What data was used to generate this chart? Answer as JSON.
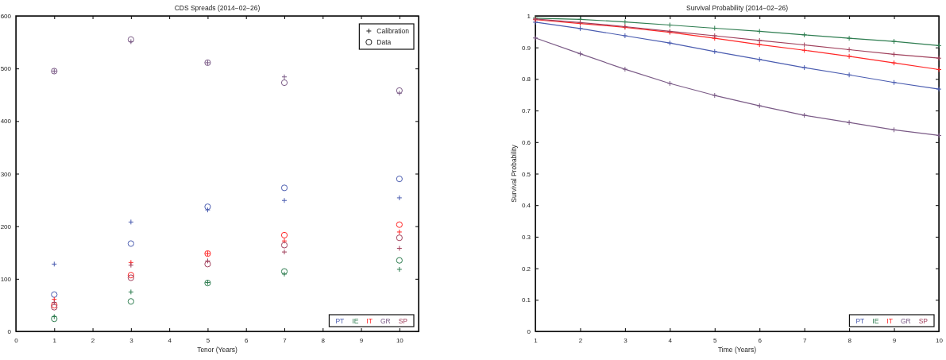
{
  "chart_data": [
    {
      "type": "scatter",
      "title": "CDS Spreads (2014−02−26)",
      "xlabel": "Tenor (Years)",
      "xlim": [
        0,
        10.5
      ],
      "xticks": [
        0,
        1,
        2,
        3,
        4,
        5,
        6,
        7,
        8,
        9,
        10
      ],
      "ylim": [
        0,
        600
      ],
      "yticks": [
        0,
        100,
        200,
        300,
        400,
        500,
        600
      ],
      "x": [
        1,
        3,
        5,
        7,
        10
      ],
      "legend": "bottom right",
      "annotations": [
        "Calibration",
        "Data"
      ],
      "series": [
        {
          "name": "PT",
          "color": "#4a5cb0",
          "marker": "cross",
          "values": [
            128,
            208,
            231,
            249,
            254
          ]
        },
        {
          "color": "#4a5cb0",
          "marker": "circle",
          "values": [
            70,
            167,
            237,
            273,
            290
          ]
        },
        {
          "name": "IE",
          "color": "#2e7d50",
          "marker": "cross",
          "values": [
            28,
            75,
            93,
            109,
            118
          ]
        },
        {
          "color": "#2e7d50",
          "marker": "circle",
          "values": [
            24,
            57,
            92,
            114,
            135
          ]
        },
        {
          "name": "IT",
          "color": "#ff2626",
          "marker": "cross",
          "values": [
            61,
            131,
            148,
            172,
            189
          ]
        },
        {
          "color": "#ff2626",
          "marker": "circle",
          "values": [
            50,
            107,
            148,
            183,
            203
          ]
        },
        {
          "name": "GR",
          "color": "#7a5a86",
          "marker": "cross",
          "values": [
            495,
            551,
            511,
            484,
            453
          ]
        },
        {
          "color": "#7a5a86",
          "values": [
            495,
            555,
            511,
            473,
            458
          ]
        },
        {
          "name": "SP",
          "color": "#a0405c",
          "marker": "cross",
          "values": [
            55,
            126,
            134,
            151,
            158
          ]
        },
        {
          "color": "#a0405c",
          "marker": "circle",
          "values": [
            46,
            102,
            128,
            164,
            178
          ]
        }
      ]
    },
    {
      "type": "line",
      "title": "Survival Probability (2014−02−26)",
      "xlabel": "Time (Years)",
      "ylabel": "Survival Probability",
      "xlim": [
        1,
        10
      ],
      "xticks": [
        1,
        2,
        3,
        4,
        5,
        6,
        7,
        8,
        9,
        10
      ],
      "ylim": [
        0,
        1
      ],
      "yticks": [
        0,
        0.1,
        0.2,
        0.3,
        0.4,
        0.5,
        0.6,
        0.7,
        0.8,
        0.9,
        1
      ],
      "x": [
        1,
        2,
        3,
        4,
        5,
        6,
        7,
        8,
        9,
        10
      ],
      "legend": "bottom right",
      "marker": "cross",
      "series": [
        {
          "name": "PT",
          "color": "#4a5cb0",
          "values": [
            0.98,
            0.96,
            0.937,
            0.914,
            0.887,
            0.862,
            0.836,
            0.813,
            0.789,
            0.768
          ]
        },
        {
          "name": "IE",
          "color": "#2e7d50",
          "values": [
            0.993,
            0.989,
            0.981,
            0.971,
            0.961,
            0.951,
            0.94,
            0.929,
            0.919,
            0.906
          ]
        },
        {
          "name": "IT",
          "color": "#ff2626",
          "values": [
            0.988,
            0.976,
            0.964,
            0.948,
            0.929,
            0.909,
            0.891,
            0.872,
            0.851,
            0.83
          ]
        },
        {
          "name": "GR",
          "color": "#7a5a86",
          "values": [
            0.93,
            0.88,
            0.831,
            0.786,
            0.748,
            0.715,
            0.685,
            0.662,
            0.639,
            0.621
          ]
        },
        {
          "name": "SP",
          "color": "#a0405c",
          "values": [
            0.99,
            0.979,
            0.966,
            0.951,
            0.937,
            0.922,
            0.908,
            0.893,
            0.878,
            0.866
          ]
        }
      ]
    }
  ]
}
